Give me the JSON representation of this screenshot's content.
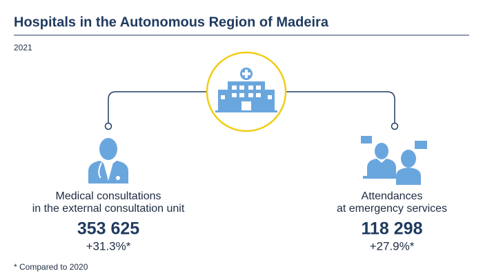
{
  "header": {
    "title": "Hospitals in the Autonomous Region of Madeira",
    "subtitle": "2021"
  },
  "items": [
    {
      "label_lines": [
        "Medical consultations",
        "in the external consultation unit"
      ],
      "value": "353 625",
      "change": "+31.3%*"
    },
    {
      "label_lines": [
        "Attendances",
        "at emergency services"
      ],
      "value": "118 298",
      "change": "+27.9%*"
    }
  ],
  "footnote": "* Compared to 2020"
}
